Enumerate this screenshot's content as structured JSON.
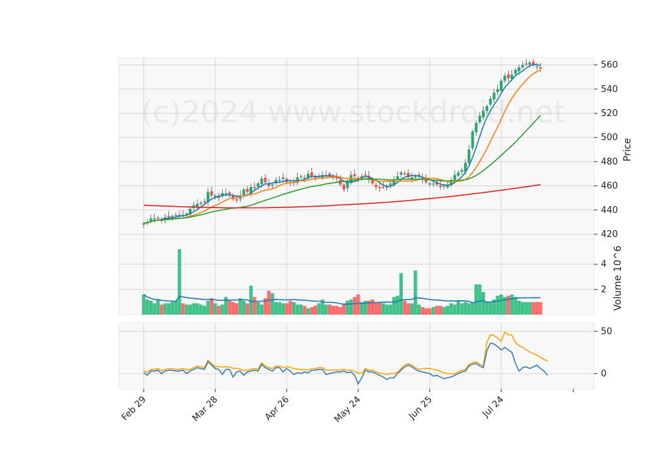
{
  "watermark": "(c)2024 www.stockdroid.net",
  "chart_data": {
    "type": "candlestick",
    "x_tick_labels": [
      "Feb 29",
      "Mar 28",
      "Apr 26",
      "May 24",
      "Jun 25",
      "Jul 24"
    ],
    "x_tick_index": [
      0,
      20,
      40,
      60,
      80,
      100
    ],
    "price_panel": {
      "ylabel": "Price",
      "ylim": [
        416,
        566
      ],
      "yticks": [
        420,
        440,
        460,
        480,
        500,
        520,
        540,
        560
      ],
      "colors": {
        "up": "#26a96c",
        "down": "#ef5350",
        "ma_fast": "#1f77b4",
        "ma_mid": "#ff7f0e",
        "ma_slow": "#2ca02c",
        "ma_long": "#d62728"
      },
      "close": [
        429,
        430,
        433,
        433,
        433,
        432,
        434,
        434,
        435,
        436,
        436,
        435,
        437,
        441,
        444,
        445,
        446,
        447,
        455,
        452,
        452,
        450,
        454,
        454,
        453,
        449,
        448,
        452,
        457,
        455,
        459,
        458,
        462,
        466,
        463,
        460,
        461,
        465,
        465,
        467,
        463,
        462,
        463,
        467,
        468,
        466,
        470,
        468,
        467,
        468,
        469,
        469,
        468,
        467,
        466,
        461,
        457,
        463,
        469,
        468,
        466,
        468,
        469,
        465,
        462,
        459,
        458,
        459,
        460,
        462,
        465,
        468,
        471,
        470,
        467,
        467,
        468,
        468,
        465,
        463,
        462,
        462,
        461,
        459,
        460,
        461,
        464,
        469,
        471,
        473,
        479,
        490,
        505,
        512,
        518,
        522,
        526,
        532,
        537,
        540,
        547,
        551,
        549,
        552,
        556,
        558,
        560,
        561,
        562,
        560,
        558,
        557
      ]
    },
    "volume_panel": {
      "ylabel": "Volume 10^6",
      "ylim": [
        0,
        6
      ],
      "yticks": [
        2,
        4
      ],
      "values": [
        1.6,
        1.2,
        1.1,
        0.9,
        1.2,
        0.8,
        0.9,
        0.9,
        1.0,
        1.1,
        5.2,
        0.9,
        0.8,
        0.8,
        0.9,
        0.9,
        0.8,
        0.7,
        1.1,
        1.3,
        0.9,
        0.7,
        0.8,
        1.4,
        1.1,
        1.0,
        0.9,
        1.3,
        1.1,
        0.9,
        2.3,
        1.4,
        1.0,
        0.8,
        1.3,
        1.9,
        1.7,
        1.0,
        1.0,
        0.9,
        0.9,
        1.1,
        1.0,
        0.8,
        0.8,
        0.7,
        0.5,
        0.6,
        0.7,
        0.9,
        1.2,
        0.8,
        0.8,
        0.7,
        0.7,
        0.6,
        0.9,
        1.1,
        1.2,
        1.4,
        1.6,
        1.0,
        1.1,
        1.1,
        1.2,
        1.0,
        1.0,
        0.9,
        0.8,
        0.8,
        1.4,
        1.5,
        3.3,
        1.1,
        0.9,
        0.9,
        3.5,
        0.8,
        0.6,
        0.5,
        0.5,
        0.6,
        0.7,
        0.7,
        0.6,
        0.7,
        0.9,
        0.8,
        1.1,
        0.9,
        1.0,
        0.9,
        1.0,
        2.4,
        2.4,
        1.8,
        1.0,
        1.0,
        1.2,
        1.5,
        1.6,
        1.4,
        1.5,
        1.6,
        1.4,
        1.1,
        1.0,
        1.0,
        1.0,
        1.0,
        1.0,
        1.0
      ],
      "avg_line_values": 1.3
    },
    "indicator_panel": {
      "ylim": [
        -18,
        60
      ],
      "yticks": [
        0,
        50
      ],
      "blue": [
        1,
        -2,
        3,
        3,
        4,
        0,
        3,
        4,
        4,
        3,
        3,
        4,
        0,
        3,
        5,
        7,
        6,
        5,
        14,
        10,
        6,
        5,
        -1,
        5,
        5,
        -4,
        2,
        3,
        -2,
        2,
        3,
        4,
        3,
        11,
        7,
        5,
        3,
        7,
        7,
        2,
        6,
        3,
        -1,
        1,
        0,
        2,
        1,
        4,
        4,
        5,
        5,
        -1,
        0,
        1,
        2,
        2,
        3,
        1,
        2,
        -2,
        -12,
        -5,
        4,
        2,
        2,
        0,
        -2,
        -4,
        -7,
        -5,
        -5,
        0,
        4,
        8,
        10,
        8,
        5,
        3,
        2,
        1,
        0,
        -3,
        -2,
        -4,
        -6,
        -5,
        -4,
        -2,
        0,
        2,
        3,
        9,
        11,
        12,
        9,
        7,
        27,
        36,
        35,
        32,
        28,
        31,
        28,
        25,
        12,
        3,
        7,
        8,
        6,
        8,
        10,
        6,
        3,
        -2
      ]
    },
    "series_count": 112
  }
}
